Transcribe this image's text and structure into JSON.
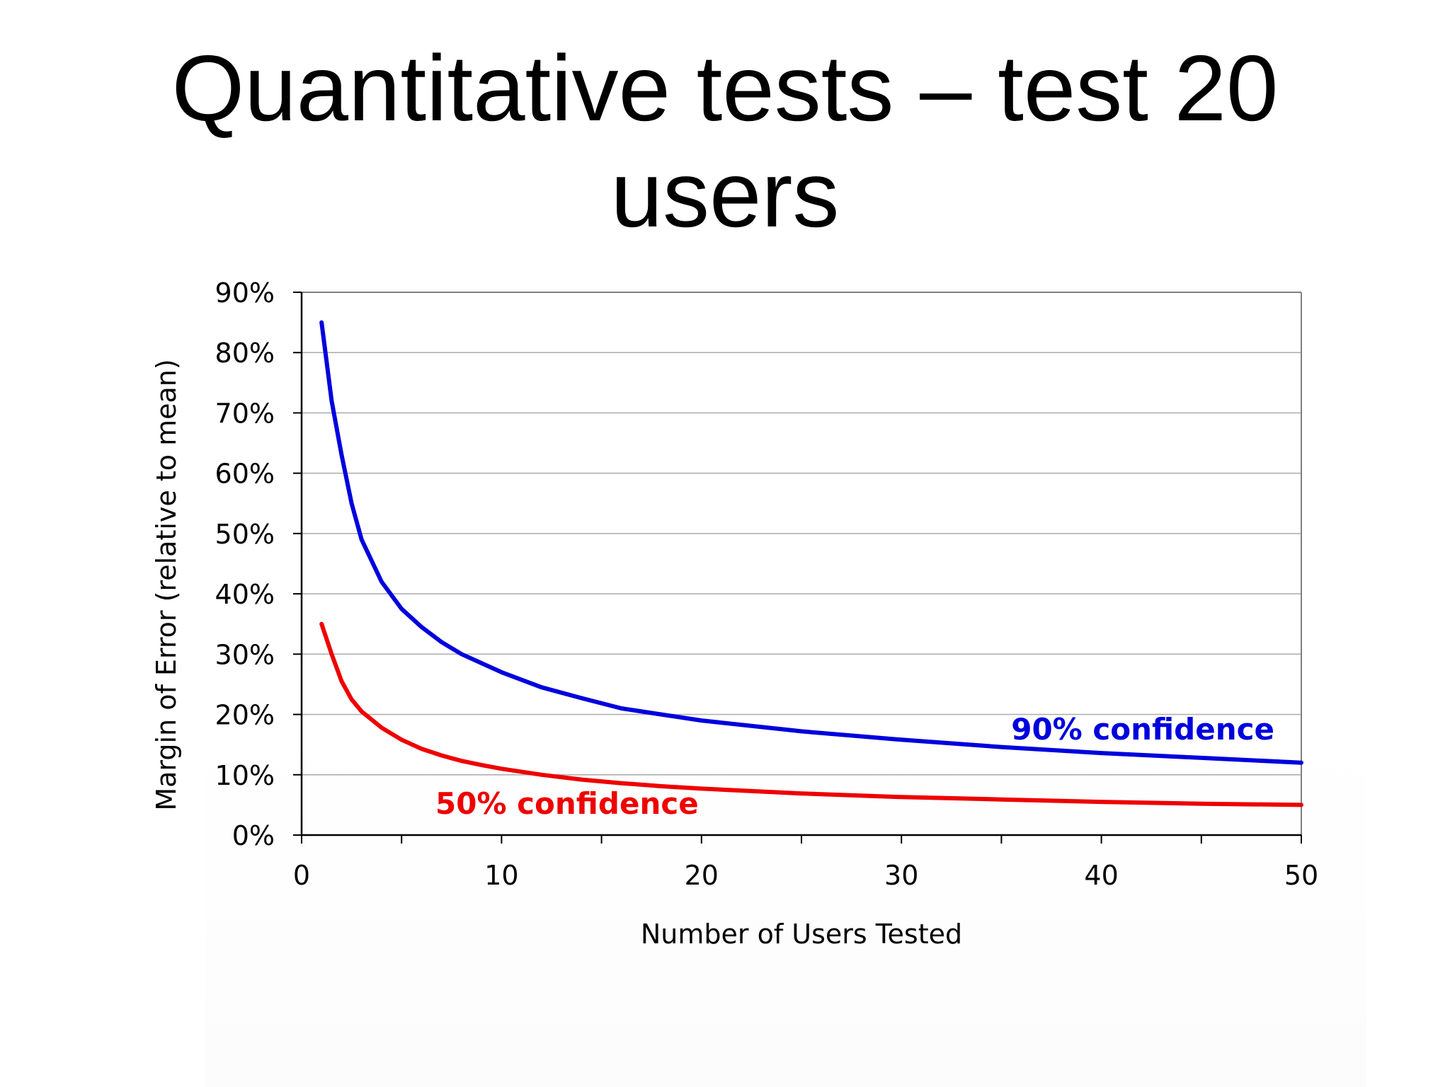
{
  "slide": {
    "title_line1": "Quantitative tests – test 20",
    "title_line2": "users"
  },
  "chart_data": {
    "type": "line",
    "xlabel": "Number of Users Tested",
    "ylabel": "Margin of Error (relative to mean)",
    "xlim": [
      0,
      50
    ],
    "ylim": [
      0,
      90
    ],
    "x_ticks": [
      0,
      10,
      20,
      30,
      40,
      50
    ],
    "x_tick_labels": [
      "0",
      "10",
      "20",
      "30",
      "40",
      "50"
    ],
    "y_ticks": [
      0,
      10,
      20,
      30,
      40,
      50,
      60,
      70,
      80,
      90
    ],
    "y_tick_labels": [
      "0%",
      "10%",
      "20%",
      "30%",
      "40%",
      "50%",
      "60%",
      "70%",
      "80%",
      "90%"
    ],
    "grid": "horizontal",
    "series": [
      {
        "name": "90% confidence",
        "color": "#0000dd",
        "x": [
          1,
          1.5,
          2,
          2.5,
          3,
          4,
          5,
          6,
          7,
          8,
          9,
          10,
          12,
          14,
          16,
          18,
          20,
          25,
          30,
          35,
          40,
          45,
          50
        ],
        "values": [
          85,
          72,
          63,
          55,
          49,
          42,
          37.5,
          34.5,
          32,
          30,
          28.5,
          27,
          24.5,
          22.7,
          21,
          20,
          19,
          17.2,
          15.8,
          14.6,
          13.6,
          12.8,
          12
        ]
      },
      {
        "name": "50% confidence",
        "color": "#ee0000",
        "x": [
          1,
          1.5,
          2,
          2.5,
          3,
          4,
          5,
          6,
          7,
          8,
          9,
          10,
          12,
          14,
          16,
          18,
          20,
          25,
          30,
          35,
          40,
          45,
          50
        ],
        "values": [
          35,
          30,
          25.5,
          22.5,
          20.5,
          17.8,
          15.8,
          14.3,
          13.2,
          12.3,
          11.6,
          11,
          10,
          9.2,
          8.6,
          8.1,
          7.7,
          6.9,
          6.3,
          5.9,
          5.5,
          5.2,
          5
        ]
      }
    ]
  }
}
